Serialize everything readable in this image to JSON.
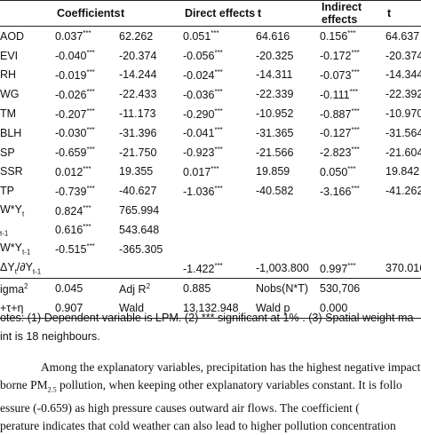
{
  "headers": [
    "",
    "Coefficients",
    "t",
    "Direct effects",
    "t",
    "Indirect effects",
    "t"
  ],
  "rows": [
    {
      "label": "AOD",
      "coef": "0.037",
      "coef_sig": "***",
      "t1": "62.262",
      "direct": "0.051",
      "direct_sig": "***",
      "t2": "64.616",
      "indirect": "0.156",
      "indirect_sig": "***",
      "t3": "64.637"
    },
    {
      "label": "EVI",
      "coef": "-0.040",
      "coef_sig": "***",
      "t1": "-20.374",
      "direct": "-0.056",
      "direct_sig": "***",
      "t2": "-20.325",
      "indirect": "-0.172",
      "indirect_sig": "***",
      "t3": "-20.374"
    },
    {
      "label": "RH",
      "coef": "-0.019",
      "coef_sig": "***",
      "t1": "-14.244",
      "direct": "-0.024",
      "direct_sig": "***",
      "t2": "-14.311",
      "indirect": "-0.073",
      "indirect_sig": "***",
      "t3": "-14.344"
    },
    {
      "label": "WG",
      "coef": "-0.026",
      "coef_sig": "***",
      "t1": "-22.433",
      "direct": "-0.036",
      "direct_sig": "***",
      "t2": "-22.339",
      "indirect": "-0.111",
      "indirect_sig": "***",
      "t3": "-22.392"
    },
    {
      "label": "TM",
      "coef": "-0.207",
      "coef_sig": "***",
      "t1": "-11.173",
      "direct": "-0.290",
      "direct_sig": "***",
      "t2": "-10.952",
      "indirect": "-0.887",
      "indirect_sig": "***",
      "t3": "-10.970"
    },
    {
      "label": "BLH",
      "coef": "-0.030",
      "coef_sig": "***",
      "t1": "-31.396",
      "direct": "-0.041",
      "direct_sig": "***",
      "t2": "-31.365",
      "indirect": "-0.127",
      "indirect_sig": "***",
      "t3": "-31.564"
    },
    {
      "label": "SP",
      "coef": "-0.659",
      "coef_sig": "***",
      "t1": "-21.750",
      "direct": "-0.923",
      "direct_sig": "***",
      "t2": "-21.566",
      "indirect": "-2.823",
      "indirect_sig": "***",
      "t3": "-21.604"
    },
    {
      "label": "SSR",
      "coef": "0.012",
      "coef_sig": "***",
      "t1": "19.355",
      "direct": "0.017",
      "direct_sig": "***",
      "t2": "19.859",
      "indirect": "0.050",
      "indirect_sig": "***",
      "t3": "19.842"
    },
    {
      "label": "TP",
      "coef": "-0.739",
      "coef_sig": "***",
      "t1": "-40.627",
      "direct": "-1.036",
      "direct_sig": "***",
      "t2": "-40.582",
      "indirect": "-3.166",
      "indirect_sig": "***",
      "t3": "-41.262"
    },
    {
      "label": "W*Y",
      "label_sub": "t",
      "coef": "0.824",
      "coef_sig": "***",
      "t1": "765.994",
      "direct": "",
      "direct_sig": "",
      "t2": "",
      "indirect": "",
      "indirect_sig": "",
      "t3": ""
    },
    {
      "label": "",
      "label_sub": "t-1",
      "coef": "0.616",
      "coef_sig": "***",
      "t1": "543.648",
      "direct": "",
      "direct_sig": "",
      "t2": "",
      "indirect": "",
      "indirect_sig": "",
      "t3": ""
    },
    {
      "label": "W*Y",
      "label_sub": "t-1",
      "coef": "-0.515",
      "coef_sig": "***",
      "t1": "-365.305",
      "direct": "",
      "direct_sig": "",
      "t2": "",
      "indirect": "",
      "indirect_sig": "",
      "t3": ""
    },
    {
      "label": "ΔY",
      "label_sub": "t",
      "label_tail": "/∂Y",
      "label_sub2": "t-1",
      "coef": "",
      "coef_sig": "",
      "t1": "",
      "direct": "-1.422",
      "direct_sig": "***",
      "t2": "-1,003.800",
      "indirect": "0.997",
      "indirect_sig": "***",
      "t3": "370.016"
    }
  ],
  "stats": [
    {
      "label": "igma",
      "label_sup": "2",
      "v1": "0.045",
      "v2": "Adj R",
      "v2_sup": "2",
      "v3": "0.885",
      "v4": "Nobs(N*T)",
      "v5": "530,706",
      "v6": ""
    },
    {
      "label": "+τ+η",
      "label_sup": "",
      "v1": "0.907",
      "v2": "Wald",
      "v2_sup": "",
      "v3": "13,132.948",
      "v4": "Wald p",
      "v5": "0.000",
      "v6": ""
    }
  ],
  "notes": [
    "otes: (1) Dependent variable is LPM. (2) *** significant at 1% . (3) Spatial weight ma",
    "int is 18 neighbours."
  ],
  "body_text": {
    "line1": "Among the explanatory variables, precipitation has the highest negative impact (",
    "line2_a": "borne PM",
    "line2_sub": "2.5",
    "line2_b": " pollution, when keeping other explanatory variables constant. It is follo",
    "line3": "essure (-0.659) as high pressure causes outward air flows. The coefficient (",
    "line4": "perature indicates that cold weather can also lead to higher pollution concentration"
  }
}
